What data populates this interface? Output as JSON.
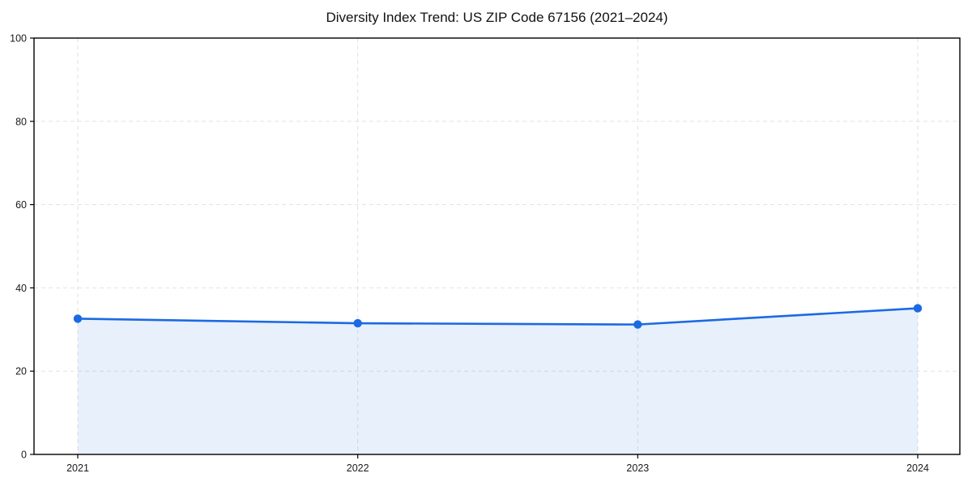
{
  "chart_data": {
    "type": "area",
    "title": "Diversity Index Trend: US ZIP Code 67156 (2021–2024)",
    "categories": [
      "2021",
      "2022",
      "2023",
      "2024"
    ],
    "series": [
      {
        "name": "Diversity Index",
        "values": [
          32.6,
          31.5,
          31.2,
          35.1
        ]
      }
    ],
    "xlabel": "",
    "ylabel": "",
    "ylim": [
      0,
      100
    ],
    "yticks": [
      0,
      20,
      40,
      60,
      80,
      100
    ],
    "grid": "dashed",
    "legend_position": "none",
    "line_color": "#1b6ae2",
    "marker_color": "#1b6ae2",
    "fill_color": "rgba(27, 106, 226, 0.10)",
    "grid_color": "#e2e2e2",
    "axis_color": "#000000",
    "tick_label_color": "#1a1a1a",
    "background_color": "#ffffff"
  }
}
